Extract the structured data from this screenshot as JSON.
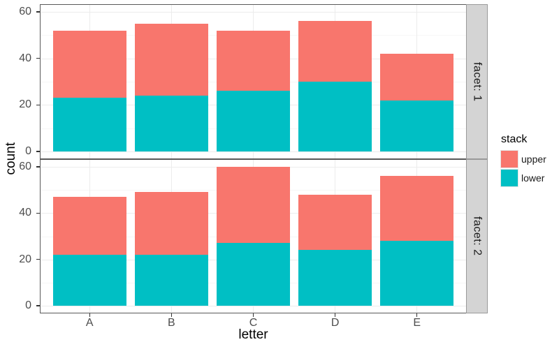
{
  "chart_data": {
    "type": "bar",
    "stacked": true,
    "xlabel": "letter",
    "ylabel": "count",
    "categories": [
      "A",
      "B",
      "C",
      "D",
      "E"
    ],
    "y_ticks": [
      0,
      20,
      40,
      60
    ],
    "ylim": [
      -3,
      63
    ],
    "grid": true,
    "facets": [
      {
        "label": "facet: 1",
        "series": [
          {
            "name": "lower",
            "values": [
              23,
              24,
              26,
              30,
              22
            ]
          },
          {
            "name": "upper",
            "values": [
              29,
              31,
              26,
              26,
              20
            ]
          }
        ],
        "totals": [
          52,
          55,
          52,
          56,
          42
        ]
      },
      {
        "label": "facet: 2",
        "series": [
          {
            "name": "lower",
            "values": [
              22,
              22,
              27,
              24,
              28
            ]
          },
          {
            "name": "upper",
            "values": [
              25,
              27,
              33,
              24,
              28
            ]
          }
        ],
        "totals": [
          47,
          49,
          60,
          48,
          56
        ]
      }
    ],
    "colors": {
      "upper": "#F8766D",
      "lower": "#00BFC4"
    },
    "legend": {
      "title": "stack",
      "position": "right",
      "entries": [
        {
          "label": "upper",
          "color": "#F8766D"
        },
        {
          "label": "lower",
          "color": "#00BFC4"
        }
      ]
    }
  }
}
